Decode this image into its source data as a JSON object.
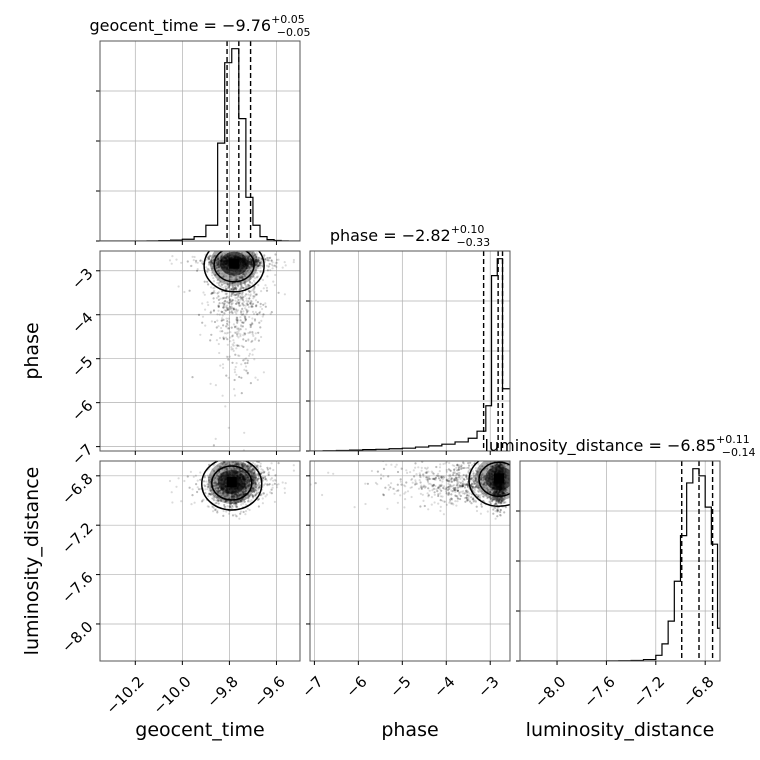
{
  "chart_data": {
    "type": "corner",
    "parameters": [
      {
        "name": "geocent_time",
        "median": -9.76,
        "plus": 0.05,
        "minus": 0.05,
        "title_main": "geocent_time = −9.76",
        "title_sup": "+0.05",
        "title_sub": "−0.05",
        "xlim": [
          -10.35,
          -9.5
        ],
        "ticks": [
          -10.2,
          -10.0,
          -9.8,
          -9.6
        ],
        "tick_labels": [
          "−10.2",
          "−10.0",
          "−9.8",
          "−9.6"
        ],
        "quantiles": [
          -9.81,
          -9.76,
          -9.71
        ]
      },
      {
        "name": "phase",
        "median": -2.82,
        "plus": 0.1,
        "minus": 0.33,
        "title_main": "phase = −2.82",
        "title_sup": "+0.10",
        "title_sub": "−0.33",
        "xlim": [
          -7.1,
          -2.55
        ],
        "ticks": [
          -7,
          -6,
          -5,
          -4,
          -3
        ],
        "tick_labels": [
          "−7",
          "−6",
          "−5",
          "−4",
          "−3"
        ],
        "quantiles": [
          -3.15,
          -2.82,
          -2.72
        ]
      },
      {
        "name": "luminosity_distance",
        "median": -6.85,
        "plus": 0.11,
        "minus": 0.14,
        "title_main": "luminosity_distance = −6.85",
        "title_sup": "+0.11",
        "title_sub": "−0.14",
        "xlim": [
          -8.3,
          -6.68
        ],
        "ticks": [
          -8.0,
          -7.6,
          -7.2,
          -6.8
        ],
        "tick_labels": [
          "−8.0",
          "−7.6",
          "−7.2",
          "−6.8"
        ],
        "quantiles": [
          -6.99,
          -6.85,
          -6.74
        ]
      }
    ],
    "histograms": [
      {
        "param": "geocent_time",
        "bins": [
          -10.35,
          -10.3,
          -10.25,
          -10.2,
          -10.15,
          -10.1,
          -10.05,
          -10.0,
          -9.95,
          -9.9,
          -9.85,
          -9.82,
          -9.79,
          -9.76,
          -9.73,
          -9.7,
          -9.67,
          -9.64,
          -9.61,
          -9.58,
          -9.55,
          -9.5
        ],
        "counts": [
          0,
          0,
          0,
          0,
          1,
          2,
          5,
          10,
          25,
          90,
          560,
          1020,
          1100,
          700,
          250,
          90,
          25,
          8,
          3,
          1,
          0
        ]
      },
      {
        "param": "phase",
        "bins": [
          -7.1,
          -6.8,
          -6.5,
          -6.2,
          -5.9,
          -5.6,
          -5.3,
          -5.0,
          -4.7,
          -4.4,
          -4.1,
          -3.8,
          -3.5,
          -3.3,
          -3.1,
          -2.97,
          -2.84,
          -2.72,
          -2.55
        ],
        "counts": [
          0,
          1,
          2,
          3,
          5,
          6,
          8,
          10,
          14,
          18,
          24,
          32,
          45,
          70,
          160,
          620,
          680,
          220
        ]
      },
      {
        "param": "luminosity_distance",
        "bins": [
          -8.3,
          -8.2,
          -8.1,
          -8.0,
          -7.9,
          -7.8,
          -7.7,
          -7.6,
          -7.5,
          -7.4,
          -7.3,
          -7.2,
          -7.15,
          -7.1,
          -7.05,
          -7.0,
          -6.95,
          -6.9,
          -6.85,
          -6.8,
          -6.75,
          -6.7,
          -6.68
        ],
        "counts": [
          0,
          0,
          0,
          0,
          0,
          0,
          0,
          1,
          2,
          4,
          10,
          40,
          120,
          280,
          560,
          880,
          1250,
          1350,
          1300,
          1080,
          820,
          230
        ]
      }
    ],
    "scatter_panels": [
      {
        "x": "geocent_time",
        "y": "phase",
        "center": [
          -9.78,
          -2.84
        ]
      },
      {
        "x": "geocent_time",
        "y": "luminosity_distance",
        "center": [
          -9.79,
          -6.85
        ]
      },
      {
        "x": "phase",
        "y": "luminosity_distance",
        "center": [
          -2.8,
          -6.82
        ]
      }
    ],
    "y_axes": [
      {
        "param": "phase",
        "ylim": [
          -7.1,
          -2.55
        ],
        "ticks": [
          -7,
          -6,
          -5,
          -4,
          -3
        ],
        "tick_labels": [
          "−7",
          "−6",
          "−5",
          "−4",
          "−3"
        ]
      },
      {
        "param": "luminosity_distance",
        "ylim": [
          -8.3,
          -6.68
        ],
        "ticks": [
          -8.0,
          -7.6,
          -7.2,
          -6.8
        ],
        "tick_labels": [
          "−8.0",
          "−7.6",
          "−7.2",
          "−6.8"
        ]
      }
    ],
    "axis_labels": {
      "x": [
        "geocent_time",
        "phase",
        "luminosity_distance"
      ],
      "y": [
        "phase",
        "luminosity_distance"
      ]
    },
    "grid": true
  }
}
